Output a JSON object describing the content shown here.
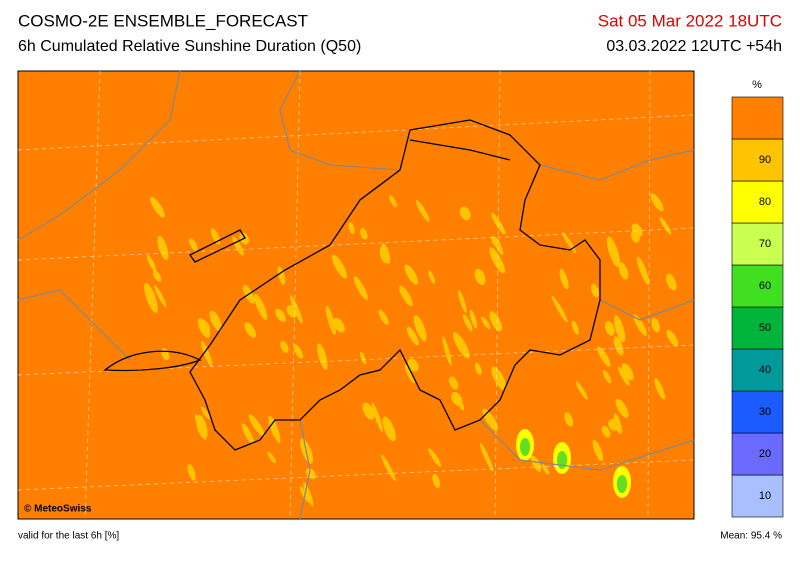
{
  "header": {
    "title": "COSMO-2E ENSEMBLE_FORECAST",
    "subtitle": "6h Cumulated Relative Sunshine Duration (Q50)",
    "valid_time": "Sat 05 Mar 2022 18UTC",
    "run": "03.03.2022 12UTC +54h"
  },
  "map": {
    "credit": "© MeteoSwiss"
  },
  "colorbar": {
    "unit": "%",
    "colors": [
      "#a8c0ff",
      "#6a6aff",
      "#1a5cff",
      "#009a9a",
      "#00b43c",
      "#40e020",
      "#c8ff50",
      "#ffff00",
      "#ffc400",
      "#ff8000"
    ],
    "ticks": [
      10,
      20,
      30,
      40,
      50,
      60,
      70,
      80,
      90
    ]
  },
  "footer": {
    "note": "valid for the last 6h [%]",
    "mean": "Mean:  95.4 %"
  }
}
